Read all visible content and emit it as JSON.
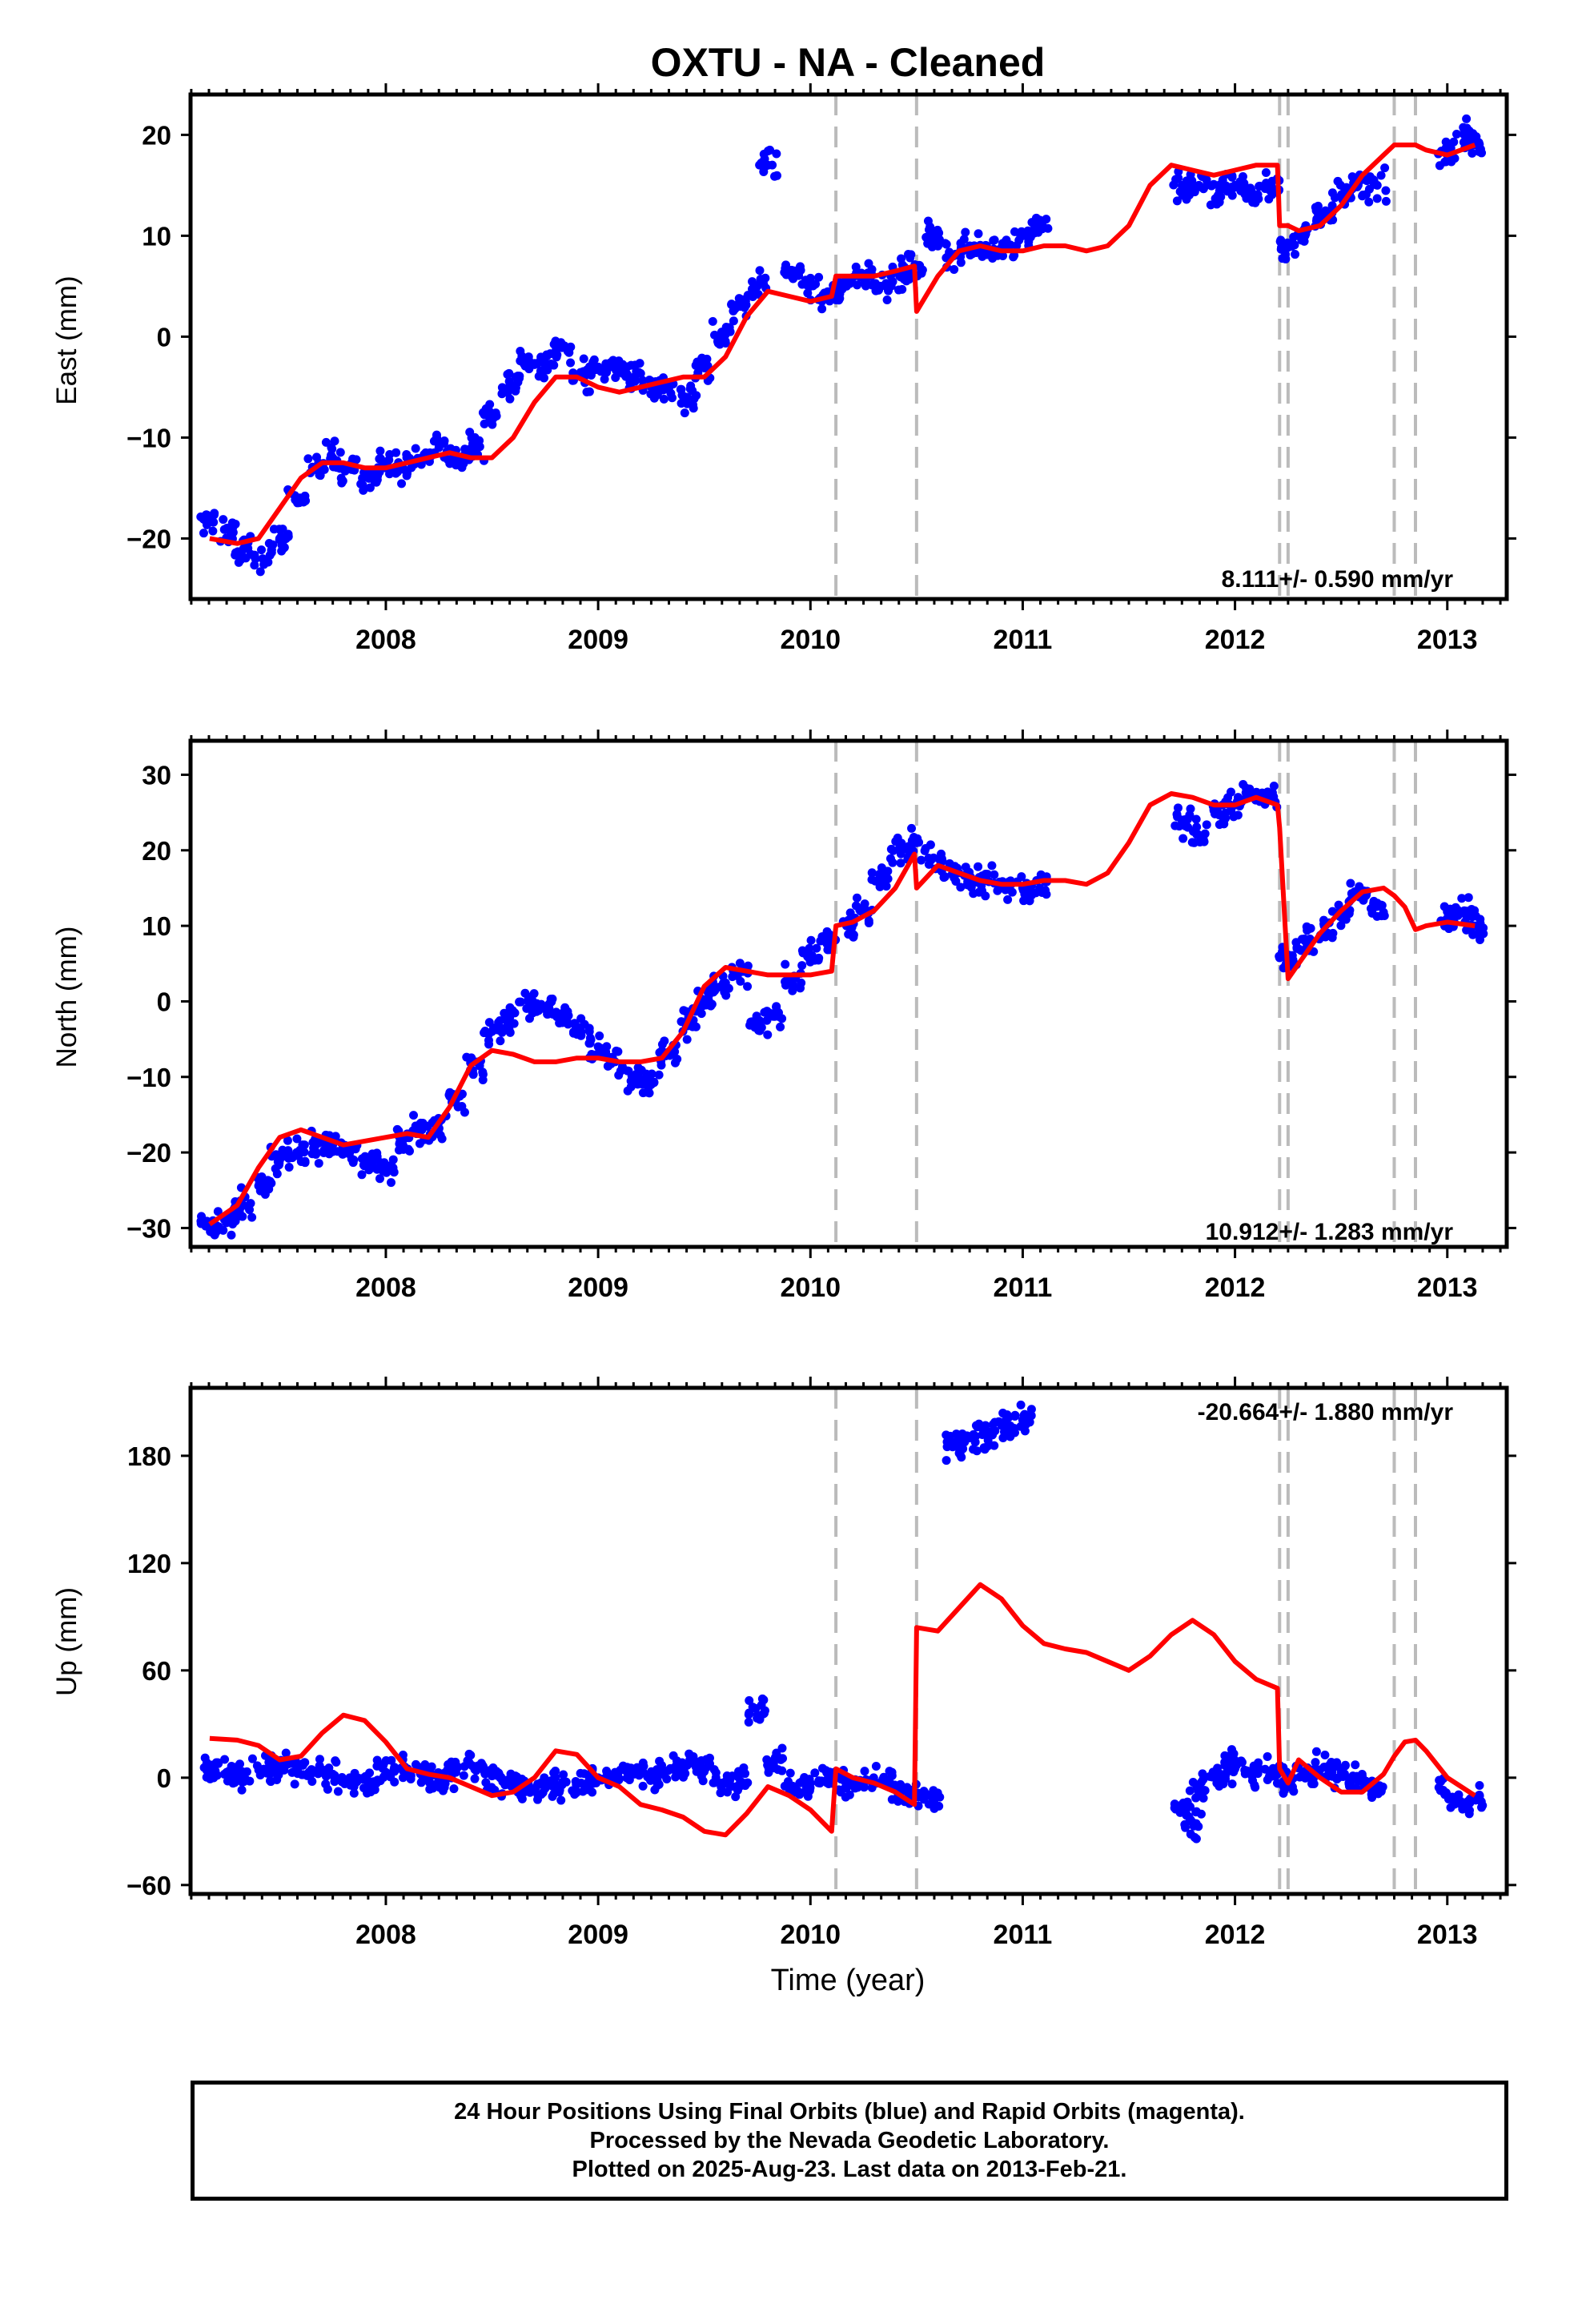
{
  "title": "OXTU  - NA - Cleaned",
  "xlabel": "Time (year)",
  "footer": {
    "line1": "24 Hour Positions Using Final Orbits (blue) and Rapid Orbits (magenta).",
    "line2": "Processed by the Nevada Geodetic Laboratory.",
    "line3": "Plotted on 2025-Aug-23. Last data on 2013-Feb-21."
  },
  "colors": {
    "data": "#0000ff",
    "model": "#ff0000",
    "steps": "#bbbbbb",
    "axes": "#000000"
  },
  "chart_data": [
    {
      "type": "scatter",
      "name": "east",
      "ylabel": "East (mm)",
      "rate_label": "8.111+/- 0.590 mm/yr",
      "xlim": [
        2007.08,
        2013.28
      ],
      "ylim": [
        -26,
        24
      ],
      "yticks": [
        -20,
        -10,
        0,
        10,
        20
      ],
      "xticks": [
        2008,
        2009,
        2010,
        2011,
        2012,
        2013
      ],
      "step_epochs": [
        2010.12,
        2010.5,
        2012.21,
        2012.25,
        2012.75,
        2012.85
      ],
      "series": [
        {
          "name": "Final Orbits",
          "x": [
            2007.17,
            2007.25,
            2007.33,
            2007.42,
            2007.5,
            2007.58,
            2007.67,
            2007.75,
            2007.83,
            2007.92,
            2008.0,
            2008.08,
            2008.17,
            2008.25,
            2008.33,
            2008.42,
            2008.5,
            2008.58,
            2008.67,
            2008.75,
            2008.83,
            2008.92,
            2009.0,
            2009.08,
            2009.17,
            2009.25,
            2009.33,
            2009.42,
            2009.5,
            2009.58,
            2009.67,
            2009.75,
            2009.8,
            2009.92,
            2010.0,
            2010.08,
            2010.17,
            2010.25,
            2010.33,
            2010.42,
            2010.5,
            2010.58,
            2010.67,
            2010.75,
            2010.83,
            2010.92,
            2011.0,
            2011.08,
            2011.75,
            2011.83,
            2011.92,
            2012.0,
            2012.08,
            2012.17,
            2012.25,
            2012.33,
            2012.42,
            2012.5,
            2012.58,
            2012.67,
            2013.0,
            2013.08,
            2013.13
          ],
          "y": [
            -18,
            -19,
            -21,
            -22,
            -20,
            -16,
            -13,
            -12,
            -13,
            -14,
            -13,
            -13,
            -12,
            -11,
            -12,
            -11,
            -8,
            -5,
            -3,
            -3,
            -1,
            -4,
            -3,
            -3,
            -4,
            -5,
            -5,
            -6,
            -3,
            0,
            3,
            5,
            17,
            6,
            5,
            4,
            5,
            6,
            5,
            6,
            7,
            10,
            8,
            9,
            9,
            9,
            10,
            11,
            15,
            15,
            14,
            15,
            14,
            15,
            9,
            10,
            12,
            14,
            15,
            15,
            18,
            20,
            19
          ]
        }
      ],
      "model": {
        "x": [
          2007.17,
          2007.3,
          2007.4,
          2007.5,
          2007.6,
          2007.7,
          2007.8,
          2007.9,
          2008.0,
          2008.1,
          2008.2,
          2008.3,
          2008.4,
          2008.5,
          2008.6,
          2008.7,
          2008.8,
          2008.9,
          2009.0,
          2009.1,
          2009.2,
          2009.3,
          2009.4,
          2009.5,
          2009.6,
          2009.7,
          2009.8,
          2009.9,
          2010.0,
          2010.1,
          2010.12,
          2010.2,
          2010.3,
          2010.4,
          2010.49,
          2010.5,
          2010.6,
          2010.7,
          2010.8,
          2010.9,
          2011.0,
          2011.1,
          2011.2,
          2011.3,
          2011.4,
          2011.5,
          2011.6,
          2011.7,
          2011.8,
          2011.9,
          2012.0,
          2012.1,
          2012.2,
          2012.21,
          2012.25,
          2012.3,
          2012.4,
          2012.5,
          2012.6,
          2012.7,
          2012.75,
          2012.8,
          2012.85,
          2012.9,
          2013.0,
          2013.13
        ],
        "y": [
          -20,
          -20.5,
          -20,
          -17,
          -14,
          -12.5,
          -12.5,
          -13,
          -13,
          -12.5,
          -12,
          -11.5,
          -12,
          -12,
          -10,
          -6.5,
          -4,
          -4,
          -5,
          -5.5,
          -5,
          -4.5,
          -4,
          -4,
          -2,
          2,
          4.5,
          4,
          3.5,
          4,
          6,
          6,
          6,
          6.5,
          7,
          2.5,
          6,
          8.5,
          9,
          8.5,
          8.5,
          9,
          9,
          8.5,
          9,
          11,
          15,
          17,
          16.5,
          16,
          16.5,
          17,
          17,
          11,
          11,
          10.5,
          11,
          13,
          16,
          18,
          19,
          19,
          19,
          18.5,
          18,
          19
        ]
      }
    },
    {
      "type": "scatter",
      "name": "north",
      "ylabel": "North (mm)",
      "rate_label": "10.912+/- 1.283 mm/yr",
      "xlim": [
        2007.08,
        2013.28
      ],
      "ylim": [
        -32.5,
        34.5
      ],
      "yticks": [
        -30,
        -20,
        -10,
        0,
        10,
        20,
        30
      ],
      "xticks": [
        2008,
        2009,
        2010,
        2011,
        2012,
        2013
      ],
      "step_epochs": [
        2010.12,
        2010.5,
        2012.21,
        2012.25,
        2012.75,
        2012.85
      ],
      "series": [
        {
          "name": "Final Orbits",
          "x": [
            2007.17,
            2007.25,
            2007.33,
            2007.42,
            2007.5,
            2007.58,
            2007.67,
            2007.75,
            2007.83,
            2007.92,
            2008.0,
            2008.08,
            2008.17,
            2008.25,
            2008.33,
            2008.42,
            2008.5,
            2008.58,
            2008.67,
            2008.75,
            2008.83,
            2008.92,
            2009.0,
            2009.08,
            2009.17,
            2009.25,
            2009.33,
            2009.42,
            2009.5,
            2009.58,
            2009.67,
            2009.75,
            2009.83,
            2009.92,
            2010.0,
            2010.08,
            2010.17,
            2010.25,
            2010.33,
            2010.42,
            2010.5,
            2010.58,
            2010.67,
            2010.75,
            2010.83,
            2010.92,
            2011.0,
            2011.08,
            2011.75,
            2011.83,
            2011.92,
            2012.0,
            2012.08,
            2012.17,
            2012.25,
            2012.33,
            2012.42,
            2012.5,
            2012.58,
            2012.67,
            2013.0,
            2013.08,
            2013.13
          ],
          "y": [
            -30,
            -29,
            -27,
            -24,
            -21,
            -20,
            -19,
            -19,
            -20,
            -21,
            -22,
            -19,
            -17,
            -16,
            -13,
            -8,
            -4,
            -2,
            0,
            -1,
            -2,
            -4,
            -6,
            -8,
            -10,
            -11,
            -7,
            -3,
            0,
            2,
            4,
            -3,
            -2,
            3,
            6,
            8,
            10,
            12,
            16,
            20,
            21,
            19,
            17,
            16,
            16,
            15,
            15,
            15,
            24,
            22,
            25,
            26,
            27,
            27,
            6,
            8,
            10,
            12,
            14,
            13,
            11,
            12,
            10
          ]
        }
      ],
      "model": {
        "x": [
          2007.17,
          2007.3,
          2007.4,
          2007.5,
          2007.6,
          2007.7,
          2007.8,
          2007.9,
          2008.0,
          2008.1,
          2008.2,
          2008.3,
          2008.4,
          2008.5,
          2008.6,
          2008.7,
          2008.8,
          2008.9,
          2009.0,
          2009.1,
          2009.2,
          2009.3,
          2009.4,
          2009.5,
          2009.6,
          2009.7,
          2009.8,
          2009.9,
          2010.0,
          2010.1,
          2010.12,
          2010.2,
          2010.3,
          2010.4,
          2010.49,
          2010.5,
          2010.6,
          2010.7,
          2010.8,
          2010.9,
          2011.0,
          2011.1,
          2011.2,
          2011.3,
          2011.4,
          2011.5,
          2011.6,
          2011.7,
          2011.8,
          2011.9,
          2012.0,
          2012.1,
          2012.2,
          2012.21,
          2012.25,
          2012.3,
          2012.4,
          2012.5,
          2012.6,
          2012.7,
          2012.75,
          2012.8,
          2012.85,
          2012.9,
          2013.0,
          2013.13
        ],
        "y": [
          -29.5,
          -27,
          -22,
          -18,
          -17,
          -18,
          -19,
          -18.5,
          -18,
          -17.5,
          -18,
          -14,
          -8.5,
          -6.5,
          -7,
          -8,
          -8,
          -7.5,
          -7.5,
          -8,
          -8,
          -7.5,
          -4,
          2,
          4.5,
          4,
          3.5,
          3.5,
          3.5,
          4,
          10,
          10.5,
          12,
          15,
          19.5,
          15,
          18,
          17,
          16,
          15.5,
          15.5,
          16,
          16,
          15.5,
          17,
          21,
          26,
          27.5,
          27,
          26,
          26,
          27,
          26,
          23,
          3,
          5,
          9,
          12,
          14.5,
          15,
          14,
          12.5,
          9.5,
          10,
          10.5,
          10
        ]
      }
    },
    {
      "type": "scatter",
      "name": "up",
      "ylabel": "Up (mm)",
      "rate_label": "-20.664+/- 1.880 mm/yr",
      "xlim": [
        2007.08,
        2013.28
      ],
      "ylim": [
        -65,
        218
      ],
      "yticks": [
        -60,
        0,
        60,
        120,
        180
      ],
      "xticks": [
        2008,
        2009,
        2010,
        2011,
        2012,
        2013
      ],
      "step_epochs": [
        2010.12,
        2010.5,
        2012.21,
        2012.25,
        2012.75,
        2012.85
      ],
      "series": [
        {
          "name": "Final Orbits",
          "x": [
            2007.17,
            2007.25,
            2007.33,
            2007.42,
            2007.5,
            2007.58,
            2007.67,
            2007.75,
            2007.83,
            2007.92,
            2008.0,
            2008.08,
            2008.17,
            2008.25,
            2008.33,
            2008.42,
            2008.5,
            2008.58,
            2008.67,
            2008.75,
            2008.83,
            2008.92,
            2009.0,
            2009.08,
            2009.17,
            2009.25,
            2009.33,
            2009.42,
            2009.5,
            2009.58,
            2009.67,
            2009.75,
            2009.83,
            2009.92,
            2010.0,
            2010.08,
            2010.17,
            2010.25,
            2010.33,
            2010.42,
            2010.5,
            2010.58,
            2010.67,
            2010.75,
            2010.83,
            2010.92,
            2011.0,
            2011.75,
            2011.8,
            2011.83,
            2011.92,
            2012.0,
            2012.08,
            2012.17,
            2012.25,
            2012.33,
            2012.42,
            2012.5,
            2012.58,
            2012.67,
            2013.0,
            2013.08,
            2013.13
          ],
          "y": [
            5,
            3,
            2,
            4,
            6,
            5,
            3,
            2,
            0,
            -2,
            3,
            4,
            2,
            -2,
            3,
            6,
            1,
            -3,
            -6,
            -6,
            -4,
            -3,
            0,
            3,
            2,
            0,
            4,
            7,
            5,
            -3,
            -2,
            35,
            10,
            -5,
            -3,
            -1,
            -4,
            -2,
            -3,
            -6,
            -10,
            -12,
            185,
            190,
            192,
            196,
            200,
            -15,
            -25,
            -5,
            3,
            5,
            4,
            3,
            -3,
            2,
            6,
            3,
            -2,
            -8,
            -10,
            -15,
            -12
          ]
        }
      ],
      "model": {
        "x": [
          2007.17,
          2007.3,
          2007.4,
          2007.5,
          2007.6,
          2007.7,
          2007.8,
          2007.9,
          2008.0,
          2008.1,
          2008.2,
          2008.3,
          2008.4,
          2008.5,
          2008.6,
          2008.7,
          2008.8,
          2008.9,
          2009.0,
          2009.1,
          2009.2,
          2009.3,
          2009.4,
          2009.5,
          2009.6,
          2009.7,
          2009.8,
          2009.9,
          2010.0,
          2010.1,
          2010.12,
          2010.2,
          2010.3,
          2010.4,
          2010.49,
          2010.5,
          2010.6,
          2010.7,
          2010.8,
          2010.9,
          2011.0,
          2011.1,
          2011.2,
          2011.3,
          2011.4,
          2011.5,
          2011.6,
          2011.7,
          2011.8,
          2011.9,
          2012.0,
          2012.1,
          2012.2,
          2012.21,
          2012.25,
          2012.3,
          2012.4,
          2012.5,
          2012.6,
          2012.7,
          2012.75,
          2012.8,
          2012.85,
          2012.9,
          2013.0,
          2013.13
        ],
        "y": [
          22,
          21,
          18,
          10,
          12,
          25,
          35,
          32,
          20,
          5,
          2,
          0,
          -5,
          -10,
          -8,
          0,
          15,
          13,
          0,
          -5,
          -15,
          -18,
          -22,
          -30,
          -32,
          -20,
          -5,
          -10,
          -18,
          -30,
          5,
          0,
          -3,
          -8,
          -15,
          84,
          82,
          95,
          108,
          100,
          85,
          75,
          72,
          70,
          65,
          60,
          68,
          80,
          88,
          80,
          65,
          55,
          50,
          5,
          -3,
          10,
          0,
          -8,
          -8,
          2,
          12,
          20,
          21,
          15,
          0,
          -10
        ]
      }
    }
  ]
}
